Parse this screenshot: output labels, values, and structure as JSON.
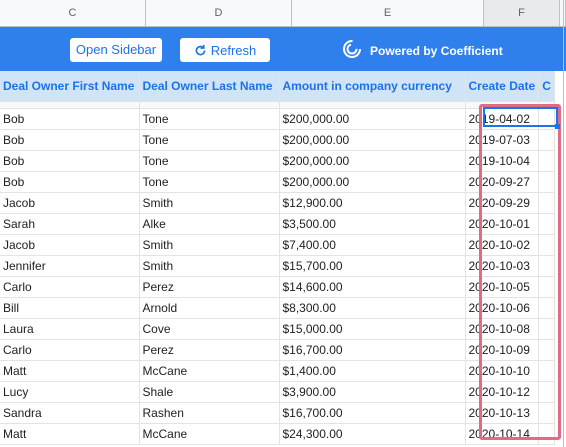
{
  "column_headers": [
    "C",
    "D",
    "E",
    "F",
    ""
  ],
  "banner": {
    "open_sidebar": "Open Sidebar",
    "refresh": "Refresh",
    "powered_by": "Powered by Coefficient",
    "color": "#2f80ed"
  },
  "table": {
    "headers": [
      "Deal Owner First Name",
      "Deal Owner Last Name",
      "Amount in company currency",
      "Create Date",
      "C"
    ],
    "rows": [
      [
        "Bob",
        "Tone",
        "$200,000.00",
        "2019-04-02"
      ],
      [
        "Bob",
        "Tone",
        "$200,000.00",
        "2019-07-03"
      ],
      [
        "Bob",
        "Tone",
        "$200,000.00",
        "2019-10-04"
      ],
      [
        "Bob",
        "Tone",
        "$200,000.00",
        "2020-09-27"
      ],
      [
        "Jacob",
        "Smith",
        "$12,900.00",
        "2020-09-29"
      ],
      [
        "Sarah",
        "Alke",
        "$3,500.00",
        "2020-10-01"
      ],
      [
        "Jacob",
        "Smith",
        "$7,400.00",
        "2020-10-02"
      ],
      [
        "Jennifer",
        "Smith",
        "$15,700.00",
        "2020-10-03"
      ],
      [
        "Carlo",
        "Perez",
        "$14,600.00",
        "2020-10-05"
      ],
      [
        "Bill",
        "Arnold",
        "$8,300.00",
        "2020-10-06"
      ],
      [
        "Laura",
        "Cove",
        "$15,000.00",
        "2020-10-08"
      ],
      [
        "Carlo",
        "Perez",
        "$16,700.00",
        "2020-10-09"
      ],
      [
        "Matt",
        "McCane",
        "$1,400.00",
        "2020-10-10"
      ],
      [
        "Lucy",
        "Shale",
        "$3,900.00",
        "2020-10-12"
      ],
      [
        "Sandra",
        "Rashen",
        "$16,700.00",
        "2020-10-13"
      ],
      [
        "Matt",
        "McCane",
        "$24,300.00",
        "2020-10-14"
      ]
    ]
  },
  "highlight_color": "#e06c84"
}
